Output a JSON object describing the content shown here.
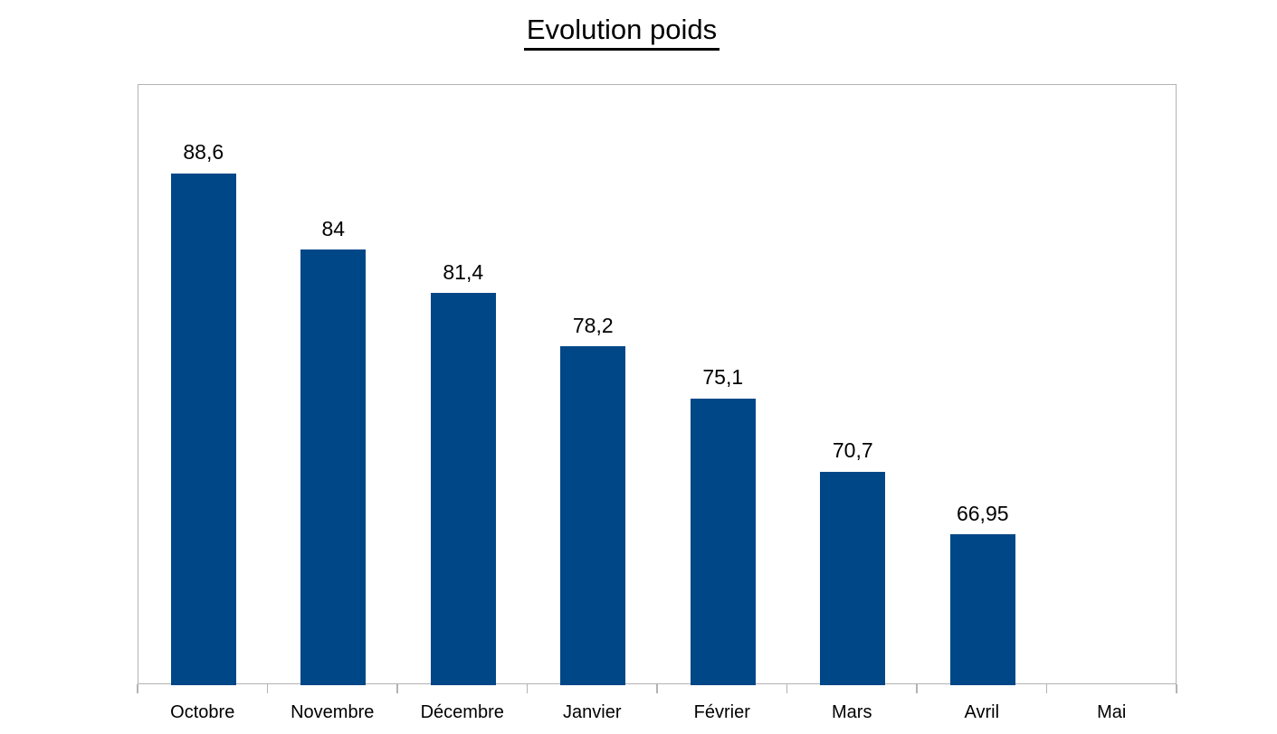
{
  "chart_data": {
    "type": "bar",
    "title": "Evolution poids",
    "categories": [
      "Octobre",
      "Novembre",
      "Décembre",
      "Janvier",
      "Février",
      "Mars",
      "Avril",
      "Mai"
    ],
    "values": [
      88.6,
      84,
      81.4,
      78.2,
      75.1,
      70.7,
      66.95,
      null
    ],
    "value_labels": [
      "88,6",
      "84",
      "81,4",
      "78,2",
      "75,1",
      "70,7",
      "66,95",
      ""
    ],
    "xlabel": "",
    "ylabel": "",
    "ylim": [
      58,
      94
    ],
    "grid": false,
    "legend": "none",
    "data_labels": "above-bars",
    "bar_color": "#004787",
    "axis_color": "#b3b3b3",
    "text_color": "#000000",
    "background_color": "#ffffff"
  }
}
